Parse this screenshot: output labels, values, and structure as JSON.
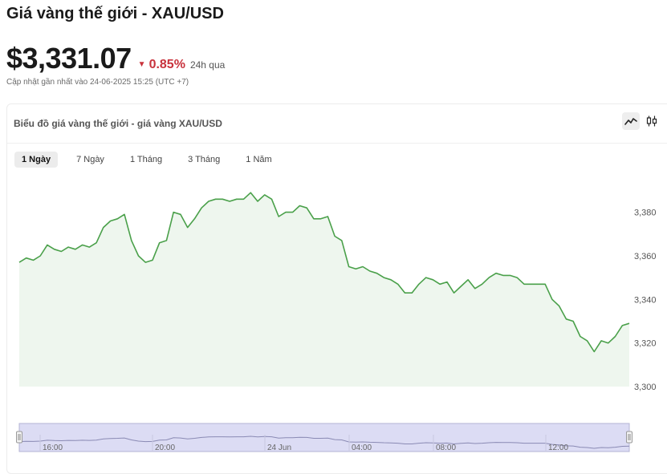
{
  "header": {
    "title": "Giá vàng thế giới - XAU/USD",
    "price": "$3,331.07",
    "change_arrow": "▼",
    "change_value": "0.85%",
    "change_period": "24h qua",
    "updated": "Cập nhật gần nhất vào 24-06-2025 15:25 (UTC +7)"
  },
  "card": {
    "title": "Biểu đồ giá vàng thế giới - giá vàng XAU/USD",
    "chart_type_buttons": [
      "line-chart-icon",
      "candlestick-icon"
    ],
    "active_chart_type": "line-chart-icon"
  },
  "tabs": [
    {
      "label": "1 Ngày",
      "active": true
    },
    {
      "label": "7 Ngày",
      "active": false
    },
    {
      "label": "1 Tháng",
      "active": false
    },
    {
      "label": "3 Tháng",
      "active": false
    },
    {
      "label": "1 Năm",
      "active": false
    }
  ],
  "colors": {
    "line": "#4aa04a",
    "area": "#eef6ee",
    "negative": "#c8323c",
    "navigator_fill": "#dcdcf4",
    "navigator_line": "#8a8ab4"
  },
  "chart_data": {
    "type": "area",
    "title": "",
    "xlabel": "",
    "ylabel": "",
    "ylim": [
      3300,
      3392
    ],
    "y_ticks": [
      "3,380",
      "3,360",
      "3,340",
      "3,320",
      "3,300"
    ],
    "y_tick_values": [
      3380,
      3360,
      3340,
      3320,
      3300
    ],
    "grid": false,
    "series": [
      {
        "values": [
          3357,
          3359,
          3358,
          3360,
          3365,
          3363,
          3362,
          3364,
          3363,
          3365,
          3364,
          3366,
          3373,
          3376,
          3377,
          3379,
          3367,
          3360,
          3357,
          3358,
          3366,
          3367,
          3380,
          3379,
          3373,
          3377,
          3382,
          3385,
          3386,
          3386,
          3385,
          3386,
          3386,
          3389,
          3385,
          3388,
          3386,
          3378,
          3380,
          3380,
          3383,
          3382,
          3377,
          3377,
          3378,
          3369,
          3367,
          3355,
          3354,
          3355,
          3353,
          3352,
          3350,
          3349,
          3347,
          3343,
          3343,
          3347,
          3350,
          3349,
          3347,
          3348,
          3343,
          3346,
          3349,
          3345,
          3347,
          3350,
          3352,
          3351,
          3351,
          3350,
          3347,
          3347,
          3347,
          3347,
          3340,
          3337,
          3331,
          3330,
          3323,
          3321,
          3316,
          3321,
          3320,
          3323,
          3328,
          3329
        ]
      }
    ],
    "navigator_labels": [
      "16:00",
      "20:00",
      "24 Jun",
      "04:00",
      "08:00",
      "12:00"
    ]
  }
}
